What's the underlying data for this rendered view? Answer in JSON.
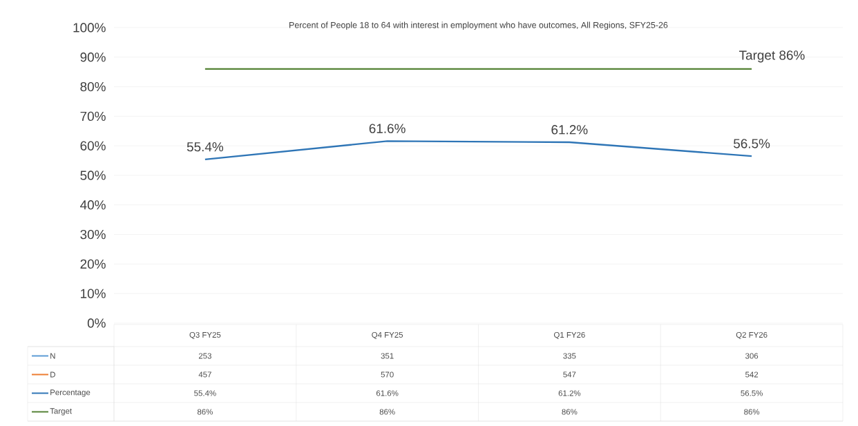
{
  "chart_data": {
    "type": "line",
    "title": "Percent of People 18 to 64 with interest in employment who have outcomes, All Regions, SFY25-26",
    "categories": [
      "Q3 FY25",
      "Q4 FY25",
      "Q1 FY26",
      "Q2 FY26"
    ],
    "series": [
      {
        "name": "N",
        "color": "#5b9bd5",
        "values": [
          null,
          null,
          null,
          null
        ],
        "value_labels": [
          "253",
          "351",
          "335",
          "306"
        ]
      },
      {
        "name": "D",
        "color": "#ed7d31",
        "values": [
          null,
          null,
          null,
          null
        ],
        "value_labels": [
          "457",
          "570",
          "547",
          "542"
        ]
      },
      {
        "name": "Percentage",
        "color": "#2e75b6",
        "values": [
          55.4,
          61.6,
          61.2,
          56.5
        ],
        "value_labels": [
          "55.4%",
          "61.6%",
          "61.2%",
          "56.5%"
        ],
        "data_labels": true
      },
      {
        "name": "Target",
        "color": "#548235",
        "values": [
          86,
          86,
          86,
          86
        ],
        "value_labels": [
          "86%",
          "86%",
          "86%",
          "86%"
        ]
      }
    ],
    "annotations": [
      {
        "text": "Target 86%",
        "x": "Q2 FY26",
        "y": 86
      }
    ],
    "ylim": [
      0,
      100
    ],
    "yticks": [
      {
        "value": 0,
        "label": "0%"
      },
      {
        "value": 10,
        "label": "10%"
      },
      {
        "value": 20,
        "label": "20%"
      },
      {
        "value": 30,
        "label": "30%"
      },
      {
        "value": 40,
        "label": "40%"
      },
      {
        "value": 50,
        "label": "50%"
      },
      {
        "value": 60,
        "label": "60%"
      },
      {
        "value": 70,
        "label": "70%"
      },
      {
        "value": 80,
        "label": "80%"
      },
      {
        "value": 90,
        "label": "90%"
      },
      {
        "value": 100,
        "label": "100%"
      }
    ],
    "grid": "y",
    "legend": "bottom left",
    "line_style": "solid",
    "marker": "none"
  }
}
